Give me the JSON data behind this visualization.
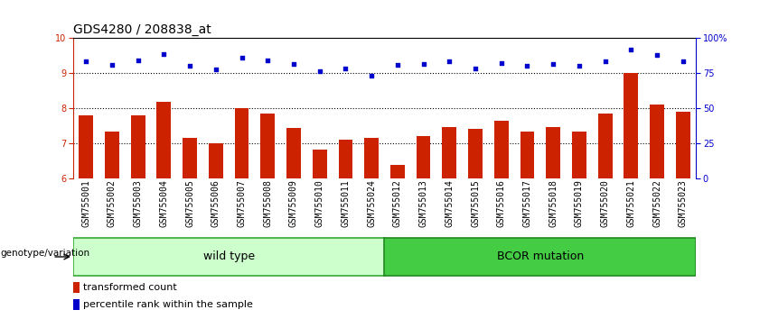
{
  "title": "GDS4280 / 208838_at",
  "categories": [
    "GSM755001",
    "GSM755002",
    "GSM755003",
    "GSM755004",
    "GSM755005",
    "GSM755006",
    "GSM755007",
    "GSM755008",
    "GSM755009",
    "GSM755010",
    "GSM755011",
    "GSM755024",
    "GSM755012",
    "GSM755013",
    "GSM755014",
    "GSM755015",
    "GSM755016",
    "GSM755017",
    "GSM755018",
    "GSM755019",
    "GSM755020",
    "GSM755021",
    "GSM755022",
    "GSM755023"
  ],
  "bar_values": [
    7.8,
    7.35,
    7.8,
    8.2,
    7.15,
    7.0,
    8.0,
    7.85,
    7.45,
    6.82,
    7.1,
    7.15,
    6.38,
    7.22,
    7.48,
    7.42,
    7.65,
    7.35,
    7.48,
    7.35,
    7.85,
    9.0,
    8.1,
    7.9
  ],
  "dot_values": [
    9.35,
    9.25,
    9.38,
    9.55,
    9.22,
    9.12,
    9.46,
    9.38,
    9.28,
    9.06,
    9.15,
    8.93,
    9.24,
    9.28,
    9.35,
    9.14,
    9.3,
    9.22,
    9.28,
    9.22,
    9.35,
    9.68,
    9.52,
    9.35
  ],
  "ylim_left": [
    6,
    10
  ],
  "ylim_right": [
    0,
    100
  ],
  "yticks_left": [
    6,
    7,
    8,
    9,
    10
  ],
  "yticks_right": [
    0,
    25,
    50,
    75,
    100
  ],
  "ytick_labels_right": [
    "0",
    "25",
    "50",
    "75",
    "100%"
  ],
  "bar_color": "#cc2200",
  "dot_color": "#0000cc",
  "wild_type_color": "#ccffcc",
  "bcor_color": "#44cc44",
  "wild_type_border": "#33aa33",
  "bcor_border": "#228822",
  "wild_type_label": "wild type",
  "bcor_label": "BCOR mutation",
  "n_wild": 12,
  "n_bcor": 12,
  "legend_bar_label": "transformed count",
  "legend_dot_label": "percentile rank within the sample",
  "genotype_label": "genotype/variation",
  "bg_color": "#cccccc",
  "grid_color": "#000000",
  "title_fontsize": 10,
  "tick_fontsize": 7,
  "label_fontsize": 9,
  "bar_width": 0.55
}
